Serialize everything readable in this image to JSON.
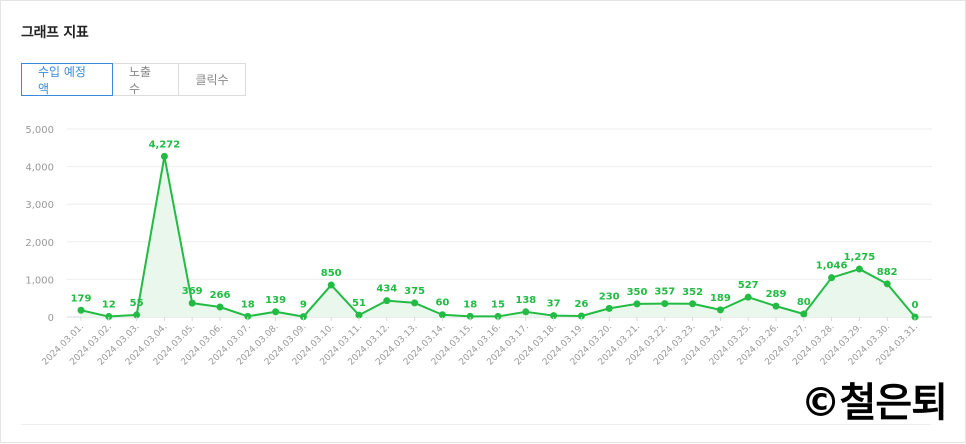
{
  "header": {
    "title": "그래프 지표"
  },
  "tabs": [
    {
      "label": "수입 예정액",
      "active": true
    },
    {
      "label": "노출수",
      "active": false
    },
    {
      "label": "클릭수",
      "active": false
    }
  ],
  "watermark": "©철은퇴",
  "colors": {
    "line": "#22bb44",
    "fill": "#eaf7ec",
    "accent": "#3b8ad9",
    "grid": "#eeeeee",
    "tick": "#999999"
  },
  "chart_data": {
    "type": "area",
    "ylim": [
      0,
      5000
    ],
    "yticks": [
      0,
      1000,
      2000,
      3000,
      4000,
      5000
    ],
    "ytick_labels": [
      "0",
      "1,000",
      "2,000",
      "3,000",
      "4,000",
      "5,000"
    ],
    "grid": true,
    "x": [
      "2024.03.01.",
      "2024.03.02.",
      "2024.03.03.",
      "2024.03.04.",
      "2024.03.05.",
      "2024.03.06.",
      "2024.03.07.",
      "2024.03.08.",
      "2024.03.09.",
      "2024.03.10.",
      "2024.03.11.",
      "2024.03.12.",
      "2024.03.13.",
      "2024.03.14.",
      "2024.03.15.",
      "2024.03.16.",
      "2024.03.17.",
      "2024.03.18.",
      "2024.03.19.",
      "2024.03.20.",
      "2024.03.21.",
      "2024.03.22.",
      "2024.03.23.",
      "2024.03.24.",
      "2024.03.25.",
      "2024.03.26.",
      "2024.03.27.",
      "2024.03.28.",
      "2024.03.29.",
      "2024.03.30.",
      "2024.03.31."
    ],
    "values": [
      179,
      12,
      55,
      4272,
      369,
      266,
      18,
      139,
      9,
      850,
      51,
      434,
      375,
      60,
      18,
      15,
      138,
      37,
      26,
      230,
      350,
      357,
      352,
      189,
      527,
      289,
      80,
      1046,
      1275,
      882,
      0
    ],
    "labels": [
      "179",
      "12",
      "55",
      "4,272",
      "369",
      "266",
      "18",
      "139",
      "9",
      "850",
      "51",
      "434",
      "375",
      "60",
      "18",
      "15",
      "138",
      "37",
      "26",
      "230",
      "350",
      "357",
      "352",
      "189",
      "527",
      "289",
      "80",
      "1,046",
      "1,275",
      "882",
      "0"
    ]
  }
}
